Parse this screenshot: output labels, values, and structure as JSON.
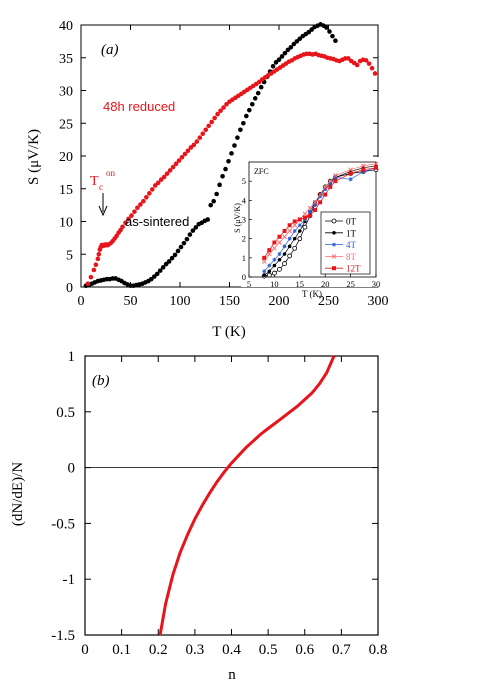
{
  "chart_data": [
    {
      "type": "scatter",
      "panel_label": "(a)",
      "xlabel": "T (K)",
      "ylabel": "S  (μV/K)",
      "xlim": [
        0,
        300
      ],
      "ylim": [
        0,
        40
      ],
      "xticks": [
        "0",
        "50",
        "100",
        "150",
        "200",
        "250",
        "300"
      ],
      "yticks": [
        "0",
        "5",
        "10",
        "15",
        "20",
        "25",
        "30",
        "35",
        "40"
      ],
      "annotations": {
        "reduced": "48h reduced",
        "sintered": "as-sintered",
        "tc_main": "T",
        "tc_sub": "c",
        "tc_sup": "on"
      },
      "colors": {
        "reduced": "#e8141b",
        "sintered": "#000000"
      },
      "series": [
        {
          "name": "48h reduced",
          "x": [
            7,
            10,
            13,
            15,
            17,
            18,
            19,
            20,
            21,
            22,
            23,
            24,
            25,
            26,
            27,
            28,
            30,
            32,
            34,
            36,
            38,
            40,
            42,
            45,
            48,
            51,
            54,
            57,
            60,
            63,
            66,
            69,
            72,
            75,
            78,
            81,
            84,
            87,
            90,
            93,
            96,
            99,
            102,
            105,
            108,
            111,
            114,
            117,
            120,
            123,
            126,
            129,
            132,
            135,
            138,
            141,
            144,
            147,
            150,
            153,
            156,
            159,
            162,
            165,
            168,
            171,
            174,
            177,
            180,
            183,
            186,
            189,
            192,
            195,
            198,
            201,
            204,
            207,
            210,
            213,
            216,
            219,
            222,
            225,
            228,
            231,
            234,
            237,
            240,
            243,
            246,
            249,
            252,
            255,
            258,
            261,
            264,
            267,
            270,
            273,
            276,
            279,
            282,
            285,
            288,
            291,
            294,
            297
          ],
          "y": [
            0.5,
            1.5,
            2.6,
            3.4,
            4.3,
            5.0,
            5.7,
            6.1,
            6.4,
            6.4,
            6.3,
            6.4,
            6.5,
            6.4,
            6.4,
            6.5,
            6.7,
            7.0,
            7.4,
            7.8,
            8.3,
            8.7,
            9.2,
            9.8,
            10.4,
            10.9,
            11.5,
            12.1,
            12.6,
            13.1,
            13.7,
            14.3,
            14.9,
            15.5,
            15.9,
            16.4,
            16.8,
            17.3,
            17.8,
            18.3,
            18.8,
            19.3,
            19.8,
            20.3,
            20.8,
            21.3,
            21.7,
            22.2,
            22.8,
            23.4,
            24.0,
            24.6,
            25.2,
            25.8,
            26.4,
            26.9,
            27.4,
            27.9,
            28.3,
            28.6,
            28.9,
            29.2,
            29.5,
            29.8,
            30.1,
            30.4,
            30.7,
            31.0,
            31.3,
            31.7,
            32.0,
            32.3,
            32.6,
            32.9,
            33.2,
            33.5,
            33.8,
            34.1,
            34.4,
            34.6,
            34.9,
            35.1,
            35.3,
            35.5,
            35.6,
            35.6,
            35.5,
            35.6,
            35.4,
            35.3,
            35.2,
            35.0,
            34.9,
            34.8,
            34.6,
            34.5,
            34.7,
            34.9,
            34.9,
            34.5,
            34.2,
            33.9,
            34.5,
            34.7,
            34.6,
            34.1,
            33.4,
            32.6
          ]
        },
        {
          "name": "as-sintered",
          "x": [
            5,
            8,
            11,
            14,
            17,
            20,
            23,
            26,
            29,
            32,
            35,
            38,
            41,
            44,
            47,
            50,
            53,
            56,
            59,
            62,
            65,
            68,
            71,
            74,
            77,
            80,
            83,
            86,
            89,
            92,
            95,
            98,
            101,
            104,
            107,
            110,
            113,
            116,
            119,
            122,
            125,
            128,
            131,
            134,
            137,
            140,
            143,
            146,
            149,
            152,
            155,
            158,
            161,
            164,
            167,
            170,
            173,
            176,
            179,
            182,
            185,
            188,
            191,
            194,
            197,
            200,
            203,
            206,
            209,
            212,
            215,
            218,
            221,
            224,
            227,
            230,
            233,
            236,
            239,
            242,
            245,
            248,
            251,
            254,
            257
          ],
          "y": [
            0.2,
            0.3,
            0.5,
            0.7,
            0.9,
            1.0,
            1.1,
            1.2,
            1.2,
            1.3,
            1.3,
            1.1,
            0.9,
            0.6,
            0.4,
            0.2,
            0.2,
            0.3,
            0.4,
            0.5,
            0.7,
            0.9,
            1.2,
            1.6,
            2.0,
            2.5,
            3.0,
            3.5,
            3.9,
            4.4,
            4.9,
            5.5,
            6.1,
            6.7,
            7.3,
            8.0,
            8.6,
            9.1,
            9.6,
            9.8,
            10.1,
            10.3,
            12.5,
            13.1,
            14.2,
            15.6,
            16.9,
            18.0,
            19.2,
            20.4,
            21.6,
            22.8,
            24.0,
            25.0,
            26.1,
            27.0,
            27.9,
            28.8,
            29.6,
            30.5,
            31.3,
            32.1,
            32.9,
            33.7,
            34.3,
            34.7,
            35.2,
            35.7,
            36.2,
            36.6,
            37.1,
            37.5,
            37.9,
            38.3,
            38.6,
            38.9,
            39.3,
            39.7,
            39.9,
            40.1,
            39.9,
            39.6,
            39.0,
            38.3,
            37.6
          ]
        }
      ],
      "baseline": {
        "x": [
          5,
          128
        ],
        "y": [
          0,
          0
        ]
      },
      "inset": {
        "label": "ZFC",
        "xlabel": "T (K)",
        "ylabel": "S (μV/K)",
        "xlim": [
          5,
          30
        ],
        "ylim": [
          0,
          6
        ],
        "xticks": [
          "5",
          "10",
          "15",
          "20",
          "25",
          "30"
        ],
        "yticks": [
          "0",
          "1",
          "2",
          "3",
          "4",
          "5"
        ],
        "series": [
          {
            "name": "0T",
            "color": "#000000",
            "marker": "open-circle",
            "x": [
              8,
              9,
              10,
              11,
              12,
              13,
              14,
              15,
              16,
              17,
              18,
              19,
              20,
              21,
              22,
              25,
              27.5,
              30
            ],
            "y": [
              0.05,
              0.1,
              0.2,
              0.4,
              0.7,
              1.1,
              1.5,
              2.0,
              2.6,
              3.2,
              3.8,
              4.3,
              4.7,
              5.0,
              5.2,
              5.4,
              5.5,
              5.6
            ]
          },
          {
            "name": "1T",
            "color": "#000000",
            "marker": "filled-circle",
            "x": [
              8,
              9,
              10,
              11,
              12,
              13,
              14,
              15,
              16,
              17,
              18,
              19,
              20,
              21,
              22,
              25,
              27.5,
              30
            ],
            "y": [
              0.1,
              0.3,
              0.6,
              0.9,
              1.2,
              1.6,
              2.0,
              2.4,
              2.9,
              3.4,
              3.9,
              4.3,
              4.6,
              4.9,
              5.2,
              5.5,
              5.7,
              5.8
            ]
          },
          {
            "name": "4T",
            "color": "#2b5fd9",
            "marker": "star",
            "x": [
              8,
              9,
              10,
              11,
              12,
              13,
              14,
              15,
              16,
              17,
              18,
              19,
              20,
              21,
              22,
              25,
              27.5,
              30
            ],
            "y": [
              0.3,
              0.6,
              0.9,
              1.2,
              1.6,
              2.0,
              2.4,
              2.7,
              3.0,
              3.4,
              3.8,
              4.2,
              4.6,
              4.9,
              5.2,
              5.1,
              5.5,
              5.7
            ]
          },
          {
            "name": "8T",
            "color": "#ff6a6a",
            "marker": "x",
            "x": [
              8,
              9,
              10,
              11,
              12,
              13,
              14,
              15,
              16,
              17,
              18,
              19,
              20,
              21,
              22,
              25,
              27.5,
              30
            ],
            "y": [
              0.8,
              1.2,
              1.5,
              1.8,
              2.1,
              2.4,
              2.7,
              3.0,
              3.3,
              3.6,
              3.9,
              4.3,
              4.7,
              5.0,
              5.3,
              5.6,
              5.8,
              5.9
            ]
          },
          {
            "name": "12T",
            "color": "#e8141b",
            "marker": "filled-square",
            "x": [
              8,
              9,
              10,
              11,
              12,
              13,
              14,
              15,
              16,
              17,
              18,
              19,
              20,
              21,
              22,
              25,
              27.5,
              30
            ],
            "y": [
              1.0,
              1.4,
              1.8,
              2.1,
              2.4,
              2.7,
              2.9,
              3.0,
              3.1,
              3.2,
              3.5,
              3.9,
              4.3,
              4.7,
              5.0,
              5.4,
              5.6,
              5.7
            ]
          }
        ]
      }
    },
    {
      "type": "line",
      "panel_label": "(b)",
      "xlabel": "n",
      "ylabel": "(dN/dE)/N",
      "xlim": [
        0,
        0.8
      ],
      "ylim": [
        -1.5,
        1
      ],
      "xticks": [
        "0",
        "0.1",
        "0.2",
        "0.3",
        "0.4",
        "0.5",
        "0.6",
        "0.7",
        "0.8"
      ],
      "yticks": [
        "-1.5",
        "-1",
        "-0.5",
        "0",
        "0.5",
        "1"
      ],
      "color": "#e8141b",
      "series": [
        {
          "x": [
            0.205,
            0.22,
            0.24,
            0.26,
            0.28,
            0.3,
            0.32,
            0.34,
            0.36,
            0.38,
            0.4,
            0.42,
            0.44,
            0.46,
            0.48,
            0.5,
            0.52,
            0.54,
            0.56,
            0.58,
            0.6,
            0.62,
            0.64,
            0.66,
            0.68
          ],
          "y": [
            -1.5,
            -1.22,
            -0.96,
            -0.76,
            -0.6,
            -0.46,
            -0.34,
            -0.23,
            -0.13,
            -0.04,
            0.04,
            0.11,
            0.18,
            0.24,
            0.3,
            0.35,
            0.4,
            0.45,
            0.5,
            0.55,
            0.61,
            0.67,
            0.75,
            0.85,
            1.0
          ]
        }
      ],
      "zero_line": {
        "x": [
          0,
          0.8
        ],
        "y": [
          0,
          0
        ]
      }
    }
  ]
}
